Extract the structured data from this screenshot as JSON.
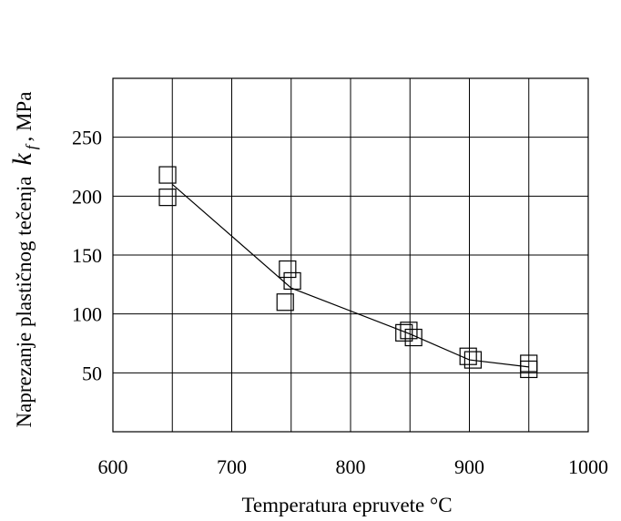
{
  "chart_data": {
    "type": "scatter",
    "title": "",
    "xlabel": "Temperatura epruvete °C",
    "ylabel": {
      "text": "Naprezanje plastičnog tečenja",
      "symbol": "k",
      "subscript": "f",
      "unit": ", MPa"
    },
    "xlim": [
      600,
      1000
    ],
    "ylim": [
      0,
      300
    ],
    "x_ticks": [
      600,
      700,
      800,
      900,
      1000
    ],
    "y_ticks": [
      50,
      100,
      150,
      200,
      250
    ],
    "grid": true,
    "series": [
      {
        "kind": "points",
        "marker": "square",
        "points": [
          {
            "x": 646,
            "y": 218
          },
          {
            "x": 646,
            "y": 199
          },
          {
            "x": 747,
            "y": 138
          },
          {
            "x": 751,
            "y": 128
          },
          {
            "x": 745,
            "y": 110
          },
          {
            "x": 845,
            "y": 84
          },
          {
            "x": 849,
            "y": 86
          },
          {
            "x": 853,
            "y": 80
          },
          {
            "x": 899,
            "y": 64
          },
          {
            "x": 903,
            "y": 61
          },
          {
            "x": 950,
            "y": 58
          },
          {
            "x": 950,
            "y": 53
          }
        ]
      },
      {
        "kind": "line",
        "points": [
          {
            "x": 650,
            "y": 210
          },
          {
            "x": 750,
            "y": 122
          },
          {
            "x": 850,
            "y": 83
          },
          {
            "x": 900,
            "y": 61
          },
          {
            "x": 950,
            "y": 55
          }
        ]
      }
    ],
    "colors": {
      "axis": "#000000",
      "grid": "#000000",
      "marker": "#000000",
      "line": "#000000"
    }
  }
}
